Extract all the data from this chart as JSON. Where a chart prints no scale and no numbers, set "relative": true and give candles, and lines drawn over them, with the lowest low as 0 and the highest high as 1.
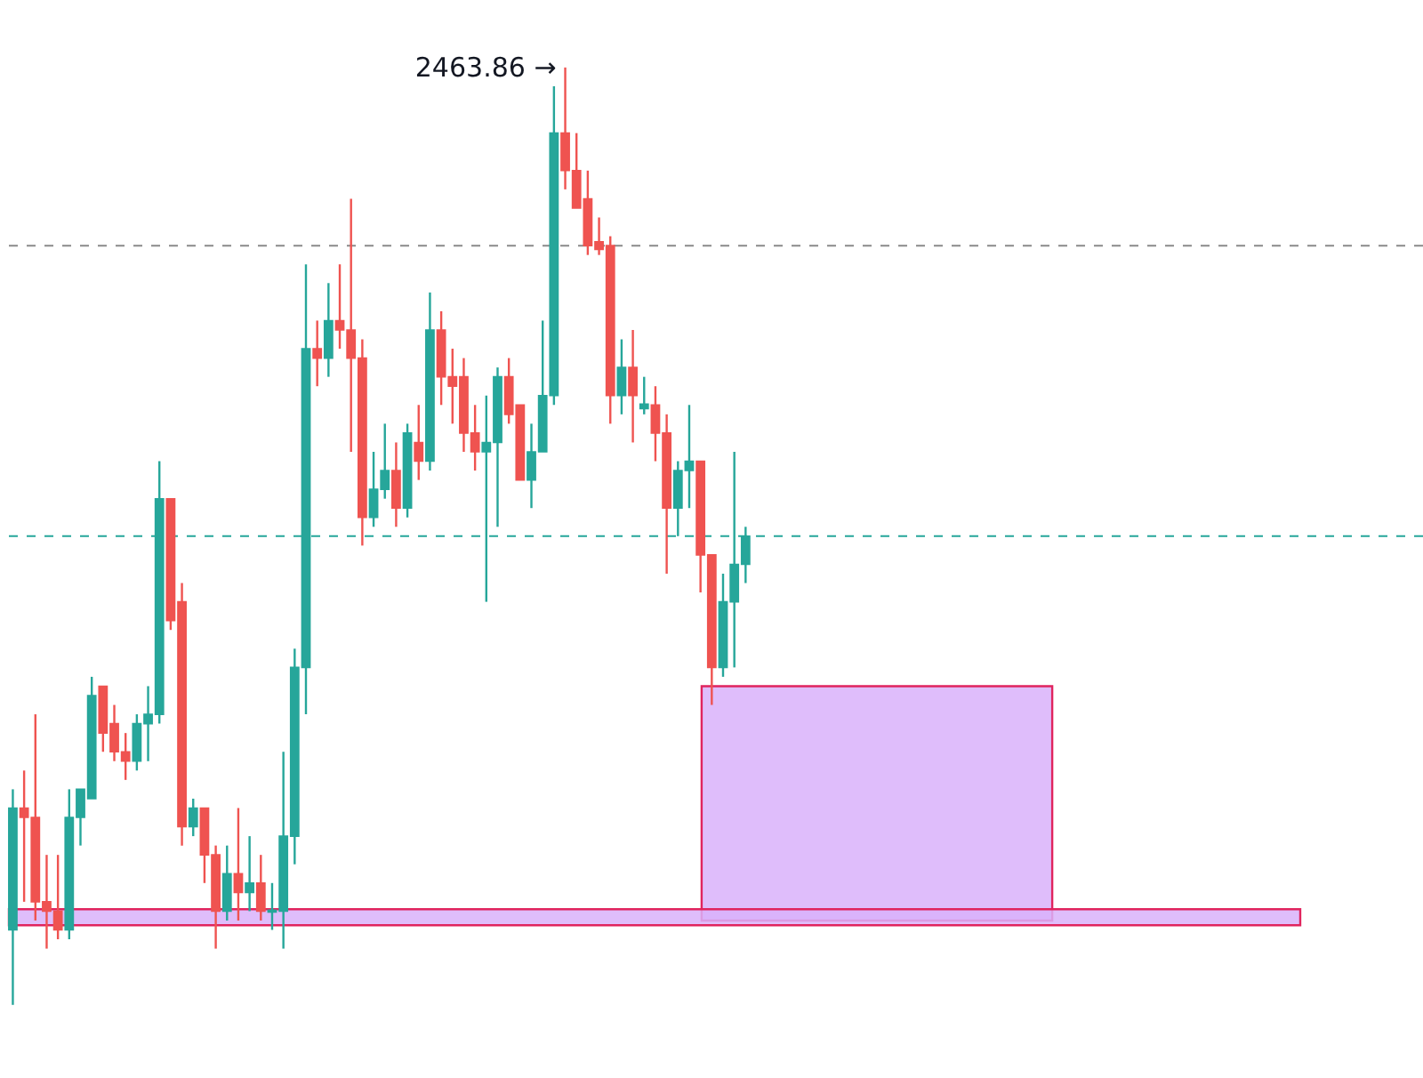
{
  "chart_data": {
    "type": "candlestick",
    "relative": true,
    "categories": [
      null,
      null,
      null,
      null,
      null,
      null,
      null,
      null,
      null,
      null,
      null,
      null,
      null,
      null,
      null,
      null,
      null,
      null,
      null,
      null,
      null,
      null,
      null,
      null,
      null,
      null,
      null,
      null,
      null,
      null,
      null,
      null,
      null,
      null,
      null,
      null,
      null,
      null,
      null,
      null,
      null,
      null,
      null,
      null,
      null,
      null,
      null,
      null,
      null,
      null,
      null,
      null,
      null,
      null,
      null,
      null,
      null,
      null,
      null,
      null,
      null,
      null,
      null,
      null,
      null,
      null
    ],
    "ohlc": [
      [
        0.08,
        0.23,
        0,
        0.21
      ],
      [
        0.21,
        0.25,
        0.11,
        0.2
      ],
      [
        0.2,
        0.31,
        0.09,
        0.11
      ],
      [
        0.11,
        0.16,
        0.06,
        0.1
      ],
      [
        0.1,
        0.16,
        0.07,
        0.08
      ],
      [
        0.08,
        0.23,
        0.07,
        0.2
      ],
      [
        0.2,
        0.23,
        0.17,
        0.23
      ],
      [
        0.22,
        0.35,
        0.22,
        0.33
      ],
      [
        0.34,
        0.34,
        0.27,
        0.29
      ],
      [
        0.3,
        0.32,
        0.26,
        0.27
      ],
      [
        0.27,
        0.29,
        0.24,
        0.26
      ],
      [
        0.26,
        0.31,
        0.25,
        0.3
      ],
      [
        0.3,
        0.34,
        0.26,
        0.31
      ],
      [
        0.31,
        0.58,
        0.3,
        0.54
      ],
      [
        0.54,
        0.54,
        0.4,
        0.41
      ],
      [
        0.43,
        0.45,
        0.17,
        0.19
      ],
      [
        0.19,
        0.22,
        0.18,
        0.21
      ],
      [
        0.21,
        0.21,
        0.13,
        0.16
      ],
      [
        0.16,
        0.17,
        0.06,
        0.1
      ],
      [
        0.1,
        0.17,
        0.09,
        0.14
      ],
      [
        0.14,
        0.21,
        0.09,
        0.12
      ],
      [
        0.12,
        0.18,
        0.1,
        0.13
      ],
      [
        0.13,
        0.16,
        0.09,
        0.1
      ],
      [
        0.099,
        0.13,
        0.08,
        0.101
      ],
      [
        0.1,
        0.27,
        0.06,
        0.18
      ],
      [
        0.18,
        0.38,
        0.15,
        0.36
      ],
      [
        0.36,
        0.79,
        0.31,
        0.7
      ],
      [
        0.7,
        0.73,
        0.66,
        0.69
      ],
      [
        0.69,
        0.77,
        0.67,
        0.73
      ],
      [
        0.73,
        0.79,
        0.7,
        0.72
      ],
      [
        0.72,
        0.86,
        0.59,
        0.69
      ],
      [
        0.69,
        0.71,
        0.49,
        0.52
      ],
      [
        0.52,
        0.59,
        0.51,
        0.55
      ],
      [
        0.55,
        0.62,
        0.54,
        0.57
      ],
      [
        0.57,
        0.6,
        0.51,
        0.53
      ],
      [
        0.53,
        0.62,
        0.52,
        0.61
      ],
      [
        0.6,
        0.64,
        0.56,
        0.58
      ],
      [
        0.58,
        0.76,
        0.57,
        0.72
      ],
      [
        0.72,
        0.74,
        0.64,
        0.67
      ],
      [
        0.67,
        0.7,
        0.62,
        0.66
      ],
      [
        0.67,
        0.69,
        0.59,
        0.61
      ],
      [
        0.61,
        0.64,
        0.57,
        0.59
      ],
      [
        0.59,
        0.65,
        0.43,
        0.6
      ],
      [
        0.6,
        0.68,
        0.51,
        0.67
      ],
      [
        0.67,
        0.69,
        0.62,
        0.63
      ],
      [
        0.64,
        0.64,
        0.56,
        0.56
      ],
      [
        0.56,
        0.62,
        0.53,
        0.59
      ],
      [
        0.59,
        0.73,
        0.59,
        0.65
      ],
      [
        0.65,
        0.98,
        0.64,
        0.93
      ],
      [
        0.93,
        1,
        0.87,
        0.89
      ],
      [
        0.89,
        0.93,
        0.85,
        0.85
      ],
      [
        0.86,
        0.89,
        0.8,
        0.81
      ],
      [
        0.814,
        0.84,
        0.8,
        0.806
      ],
      [
        0.81,
        0.82,
        0.62,
        0.65
      ],
      [
        0.65,
        0.71,
        0.63,
        0.68
      ],
      [
        0.68,
        0.72,
        0.6,
        0.65
      ],
      [
        0.636,
        0.67,
        0.63,
        0.641
      ],
      [
        0.64,
        0.66,
        0.58,
        0.61
      ],
      [
        0.61,
        0.63,
        0.46,
        0.53
      ],
      [
        0.53,
        0.58,
        0.5,
        0.57
      ],
      [
        0.57,
        0.64,
        0.53,
        0.58
      ],
      [
        0.58,
        0.58,
        0.44,
        0.48
      ],
      [
        0.48,
        0.48,
        0.32,
        0.36
      ],
      [
        0.36,
        0.46,
        0.35,
        0.43
      ],
      [
        0.43,
        0.59,
        0.36,
        0.47
      ],
      [
        0.47,
        0.51,
        0.45,
        0.5
      ]
    ],
    "colors": [
      "#26a69a",
      "#ef5350",
      "#ef5350",
      "#ef5350",
      "#ef5350",
      "#26a69a",
      "#26a69a",
      "#26a69a",
      "#ef5350",
      "#ef5350",
      "#ef5350",
      "#26a69a",
      "#26a69a",
      "#26a69a",
      "#ef5350",
      "#ef5350",
      "#26a69a",
      "#ef5350",
      "#ef5350",
      "#26a69a",
      "#ef5350",
      "#26a69a",
      "#ef5350",
      "#26a69a",
      "#26a69a",
      "#26a69a",
      "#26a69a",
      "#ef5350",
      "#26a69a",
      "#ef5350",
      "#ef5350",
      "#ef5350",
      "#26a69a",
      "#26a69a",
      "#ef5350",
      "#26a69a",
      "#ef5350",
      "#26a69a",
      "#ef5350",
      "#ef5350",
      "#ef5350",
      "#ef5350",
      "#26a69a",
      "#26a69a",
      "#ef5350",
      "#ef5350",
      "#26a69a",
      "#26a69a",
      "#26a69a",
      "#ef5350",
      "#ef5350",
      "#ef5350",
      "#ef5350",
      "#ef5350",
      "#26a69a",
      "#ef5350",
      "#26a69a",
      "#ef5350",
      "#ef5350",
      "#26a69a",
      "#26a69a",
      "#ef5350",
      "#ef5350",
      "#26a69a",
      "#26a69a",
      "#26a69a"
    ],
    "ref_lines": [
      {
        "axis": "y",
        "value": 0.81,
        "color": "#8a8a8a",
        "line_style": "dashed"
      },
      {
        "axis": "y",
        "value": 0.5,
        "color": "#26a69a",
        "line_style": "dashed"
      }
    ],
    "bands": [
      {
        "axis": "y",
        "from": 0.09,
        "to": 0.34,
        "color": "#d9b2fa"
      },
      {
        "axis": "y",
        "from": 0.085,
        "to": 0.102,
        "color": "#d9b2fa"
      }
    ],
    "annotations": [
      "2463.86 →"
    ]
  }
}
